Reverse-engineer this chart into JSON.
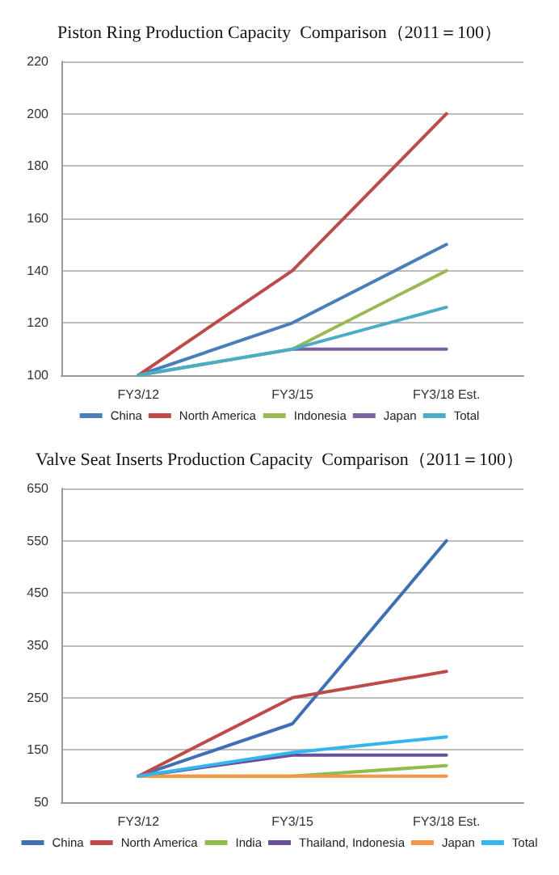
{
  "chart_data": [
    {
      "type": "line",
      "title": "Piston Ring Production Capacity  Comparison（2011＝100）",
      "categories": [
        "FY3/12",
        "FY3/15",
        "FY3/18 Est."
      ],
      "ylim": [
        100,
        220
      ],
      "yticks": [
        100,
        120,
        140,
        160,
        180,
        200,
        220
      ],
      "grid": "y",
      "legend": "bottom",
      "marker": "none",
      "line_style": "solid",
      "series": [
        {
          "name": "China",
          "color": "#4a7ebb",
          "values": [
            100,
            120,
            150
          ]
        },
        {
          "name": "North America",
          "color": "#be4b48",
          "values": [
            100,
            140,
            200
          ]
        },
        {
          "name": "Indonesia",
          "color": "#98b954",
          "values": [
            100,
            110,
            140
          ]
        },
        {
          "name": "Japan",
          "color": "#7d60a0",
          "values": [
            null,
            110,
            110
          ]
        },
        {
          "name": "Total",
          "color": "#4bacc6",
          "values": [
            100,
            110,
            126
          ]
        }
      ]
    },
    {
      "type": "line",
      "title": "Valve Seat Inserts Production Capacity  Comparison（2011＝100）",
      "categories": [
        "FY3/12",
        "FY3/15",
        "FY3/18 Est."
      ],
      "ylim": [
        50,
        650
      ],
      "yticks": [
        50,
        150,
        250,
        350,
        450,
        550,
        650
      ],
      "grid": "y",
      "legend": "bottom",
      "marker": "none",
      "line_style": "solid",
      "series": [
        {
          "name": "China",
          "color": "#3f6fb5",
          "values": [
            100,
            200,
            550
          ]
        },
        {
          "name": "North America",
          "color": "#be4b48",
          "values": [
            100,
            250,
            300
          ]
        },
        {
          "name": "India",
          "color": "#8fbc4a",
          "values": [
            100,
            100,
            120
          ]
        },
        {
          "name": "Thailand, Indonesia",
          "color": "#6a4f9a",
          "values": [
            100,
            140,
            140
          ]
        },
        {
          "name": "Japan",
          "color": "#f79646",
          "values": [
            100,
            100,
            100
          ]
        },
        {
          "name": "Total",
          "color": "#33b5f0",
          "values": [
            100,
            145,
            175
          ]
        }
      ]
    }
  ]
}
